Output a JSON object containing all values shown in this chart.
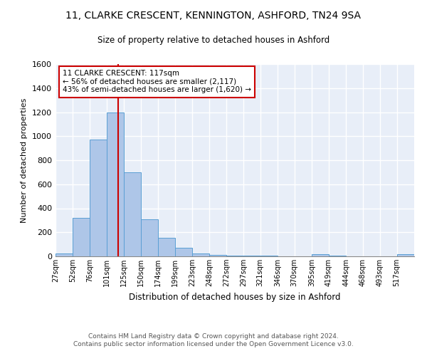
{
  "title1": "11, CLARKE CRESCENT, KENNINGTON, ASHFORD, TN24 9SA",
  "title2": "Size of property relative to detached houses in Ashford",
  "xlabel": "Distribution of detached houses by size in Ashford",
  "ylabel": "Number of detached properties",
  "annotation_line1": "11 CLARKE CRESCENT: 117sqm",
  "annotation_line2": "← 56% of detached houses are smaller (2,117)",
  "annotation_line3": "43% of semi-detached houses are larger (1,620) →",
  "footer1": "Contains HM Land Registry data © Crown copyright and database right 2024.",
  "footer2": "Contains public sector information licensed under the Open Government Licence v3.0.",
  "property_size": 117,
  "bin_edges": [
    27,
    52,
    76,
    101,
    125,
    150,
    174,
    199,
    223,
    248,
    272,
    297,
    321,
    346,
    370,
    395,
    419,
    444,
    468,
    493,
    517,
    542
  ],
  "bar_heights": [
    25,
    320,
    970,
    1200,
    700,
    310,
    155,
    70,
    25,
    10,
    5,
    5,
    5,
    0,
    0,
    15,
    5,
    0,
    0,
    0,
    15
  ],
  "bar_color": "#aec6e8",
  "bar_edge_color": "#5a9fd4",
  "vline_color": "#cc0000",
  "vline_x": 117,
  "annotation_box_color": "#cc0000",
  "background_color": "#e8eef8",
  "grid_color": "#ffffff",
  "ylim": [
    0,
    1600
  ],
  "yticks": [
    0,
    200,
    400,
    600,
    800,
    1000,
    1200,
    1400,
    1600
  ],
  "xtick_labels": [
    "27sqm",
    "52sqm",
    "76sqm",
    "101sqm",
    "125sqm",
    "150sqm",
    "174sqm",
    "199sqm",
    "223sqm",
    "248sqm",
    "272sqm",
    "297sqm",
    "321sqm",
    "346sqm",
    "370sqm",
    "395sqm",
    "419sqm",
    "444sqm",
    "468sqm",
    "493sqm",
    "517sqm"
  ]
}
